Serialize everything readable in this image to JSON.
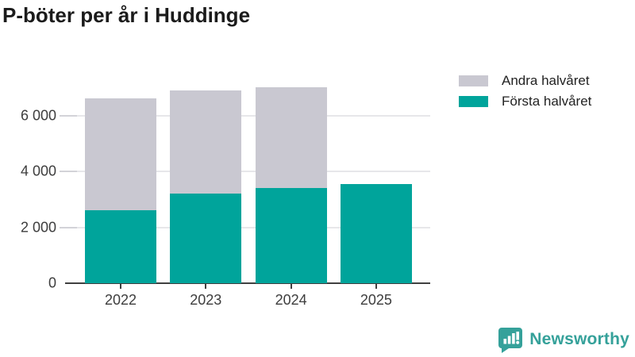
{
  "title": "P-böter per år i Huddinge",
  "legend": [
    {
      "label": "Andra halvåret",
      "color": "#c9c8d1"
    },
    {
      "label": "Första halvåret",
      "color": "#00a49b"
    }
  ],
  "chart_data": {
    "type": "bar",
    "stacked": true,
    "title": "P-böter per år i Huddinge",
    "categories": [
      "2022",
      "2023",
      "2024",
      "2025"
    ],
    "series": [
      {
        "name": "Första halvåret",
        "color": "#00a49b",
        "values": [
          2600,
          3200,
          3400,
          3550
        ]
      },
      {
        "name": "Andra halvåret",
        "color": "#c9c8d1",
        "values": [
          4000,
          3700,
          3600,
          0
        ]
      }
    ],
    "yticks": [
      {
        "value": 0,
        "label": "0"
      },
      {
        "value": 2000,
        "label": "2 000"
      },
      {
        "value": 4000,
        "label": "4 000"
      },
      {
        "value": 6000,
        "label": "6 000"
      }
    ],
    "ylim": [
      0,
      7400
    ],
    "xlabel": "",
    "ylabel": "",
    "grid": true,
    "legend_position": "top-right"
  },
  "colors": {
    "first_half": "#00a49b",
    "second_half": "#c9c8d1",
    "axis": "#404040",
    "tick_text": "#3d3d3d",
    "grid": "#e7e7ea",
    "brand": "#35a19a"
  },
  "branding": {
    "name": "Newsworthy"
  }
}
